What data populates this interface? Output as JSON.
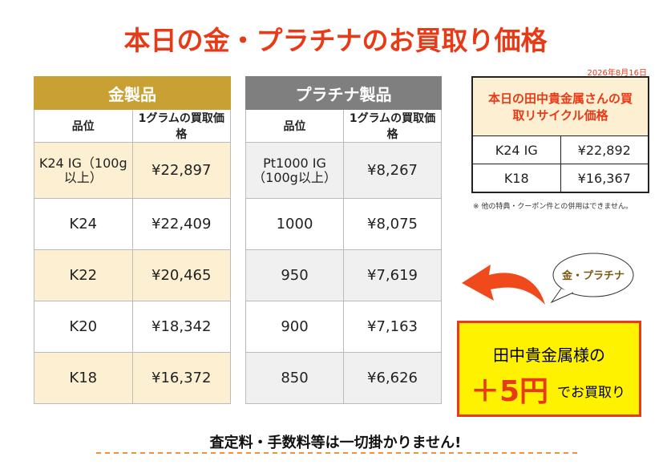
{
  "title": "本日の金・プラチナのお買取り価格",
  "date": "2026年8月16日",
  "gold": {
    "heading": "金製品",
    "columns": [
      "品位",
      "1グラムの買取価格"
    ],
    "rows": [
      [
        "K24 IG（100g以上）",
        "¥22,897"
      ],
      [
        "K24",
        "¥22,409"
      ],
      [
        "K22",
        "¥20,465"
      ],
      [
        "K20",
        "¥18,342"
      ],
      [
        "K18",
        "¥16,372"
      ]
    ]
  },
  "platinum": {
    "heading": "プラチナ製品",
    "columns": [
      "品位",
      "1グラムの買取価格"
    ],
    "rows": [
      [
        "Pt1000 IG（100g以上）",
        "¥8,267"
      ],
      [
        "1000",
        "¥8,075"
      ],
      [
        "950",
        "¥7,619"
      ],
      [
        "900",
        "¥7,163"
      ],
      [
        "850",
        "¥6,626"
      ]
    ]
  },
  "tanaka": {
    "heading": "本日の田中貴金属さんの買取リサイクル価格",
    "rows": [
      [
        "K24 IG",
        "¥22,892"
      ],
      [
        "K18",
        "¥16,367"
      ]
    ]
  },
  "note": "※ 他の特典・クーポン件との併用はできません。",
  "bubble": "金・プラチナ",
  "promo": {
    "line1": "田中貴金属様の",
    "bonus": "＋5円",
    "suffix": "でお買取り"
  },
  "footer": "査定料・手数料等は一切掛かりません!"
}
